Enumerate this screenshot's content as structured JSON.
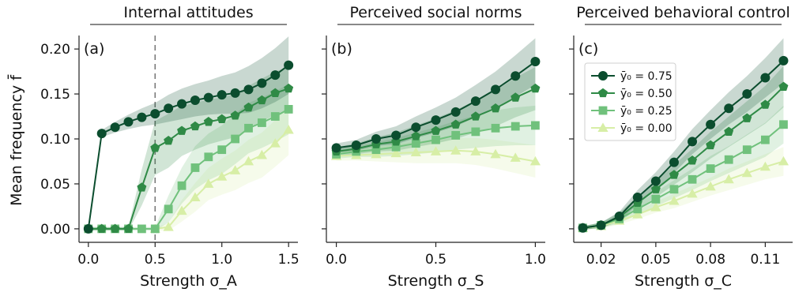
{
  "figure": {
    "ylabel": "Mean frequency f̄",
    "colors": {
      "0.75": "#0b4d2e",
      "0.50": "#2f8a46",
      "0.25": "#70c17c",
      "0.00": "#d7eea6"
    },
    "markers": {
      "0.75": "circle",
      "0.50": "pentagon",
      "0.25": "square",
      "0.00": "triangle"
    }
  },
  "legend": {
    "entries": [
      "ȳ₀ = 0.75",
      "ȳ₀ = 0.50",
      "ȳ₀ = 0.25",
      "ȳ₀ = 0.00"
    ]
  },
  "chart_data": [
    {
      "type": "line",
      "title": "Internal attitudes",
      "panel_label": "(a)",
      "xlabel": "Strength σ_A",
      "xlim": [
        -0.07,
        1.57
      ],
      "ylim": [
        -0.015,
        0.215
      ],
      "xticks": [
        0.0,
        0.5,
        1.0,
        1.5
      ],
      "xtick_labels": [
        "0.0",
        "0.5",
        "1.0",
        "1.5"
      ],
      "yticks": [
        0.0,
        0.05,
        0.1,
        0.15,
        0.2
      ],
      "ytick_labels": [
        "0.00",
        "0.05",
        "0.10",
        "0.15",
        "0.20"
      ],
      "vline": 0.5,
      "x": [
        0.0,
        0.1,
        0.2,
        0.3,
        0.4,
        0.5,
        0.6,
        0.7,
        0.8,
        0.9,
        1.0,
        1.1,
        1.2,
        1.3,
        1.4,
        1.5
      ],
      "series": [
        {
          "name": "ȳ₀ = 0.75",
          "key": "0.75",
          "values": [
            0.0,
            0.106,
            0.113,
            0.119,
            0.124,
            0.128,
            0.134,
            0.139,
            0.143,
            0.146,
            0.149,
            0.151,
            0.155,
            0.162,
            0.171,
            0.182
          ],
          "band": [
            0.002,
            0.004,
            0.006,
            0.008,
            0.01,
            0.012,
            0.015,
            0.017,
            0.018,
            0.019,
            0.021,
            0.023,
            0.026,
            0.028,
            0.03,
            0.032
          ]
        },
        {
          "name": "ȳ₀ = 0.50",
          "key": "0.50",
          "values": [
            0.0,
            0.0,
            0.0,
            0.0,
            0.046,
            0.09,
            0.098,
            0.109,
            0.114,
            0.119,
            0.122,
            0.126,
            0.135,
            0.143,
            0.151,
            0.156
          ],
          "band": [
            0.002,
            0.002,
            0.002,
            0.002,
            0.02,
            0.03,
            0.03,
            0.028,
            0.026,
            0.025,
            0.024,
            0.024,
            0.024,
            0.024,
            0.024,
            0.024
          ]
        },
        {
          "name": "ȳ₀ = 0.25",
          "key": "0.25",
          "values": [
            0.0,
            0.0,
            0.0,
            0.0,
            0.0,
            0.0,
            0.022,
            0.048,
            0.068,
            0.08,
            0.088,
            0.1,
            0.112,
            0.118,
            0.125,
            0.133
          ],
          "band": [
            0.002,
            0.002,
            0.002,
            0.002,
            0.002,
            0.002,
            0.015,
            0.02,
            0.024,
            0.026,
            0.027,
            0.028,
            0.028,
            0.028,
            0.028,
            0.028
          ]
        },
        {
          "name": "ȳ₀ = 0.00",
          "key": "0.00",
          "values": [
            null,
            null,
            null,
            null,
            null,
            0.0,
            0.002,
            0.02,
            0.035,
            0.05,
            0.058,
            0.065,
            0.075,
            0.082,
            0.095,
            0.11
          ],
          "band": [
            0,
            0,
            0,
            0,
            0,
            0.002,
            0.004,
            0.012,
            0.016,
            0.018,
            0.02,
            0.022,
            0.024,
            0.025,
            0.026,
            0.028
          ]
        }
      ]
    },
    {
      "type": "line",
      "title": "Perceived social norms",
      "panel_label": "(b)",
      "xlabel": "Strength σ_S",
      "xlim": [
        -0.05,
        1.05
      ],
      "ylim": [
        -0.015,
        0.215
      ],
      "xticks": [
        0.0,
        0.5,
        1.0
      ],
      "xtick_labels": [
        "0.0",
        "0.5",
        "1.0"
      ],
      "yticks": [
        0.0,
        0.05,
        0.1,
        0.15,
        0.2
      ],
      "ytick_labels": [],
      "x": [
        0.0,
        0.1,
        0.2,
        0.3,
        0.4,
        0.5,
        0.6,
        0.7,
        0.8,
        0.9,
        1.0
      ],
      "series": [
        {
          "name": "ȳ₀ = 0.75",
          "key": "0.75",
          "values": [
            0.09,
            0.093,
            0.1,
            0.104,
            0.113,
            0.121,
            0.13,
            0.142,
            0.155,
            0.17,
            0.186
          ],
          "band": [
            0.005,
            0.006,
            0.008,
            0.01,
            0.012,
            0.014,
            0.016,
            0.018,
            0.02,
            0.023,
            0.026
          ]
        },
        {
          "name": "ȳ₀ = 0.50",
          "key": "0.50",
          "values": [
            0.086,
            0.089,
            0.094,
            0.097,
            0.103,
            0.109,
            0.116,
            0.125,
            0.134,
            0.146,
            0.156
          ],
          "band": [
            0.005,
            0.006,
            0.008,
            0.01,
            0.012,
            0.014,
            0.016,
            0.018,
            0.02,
            0.022,
            0.024
          ]
        },
        {
          "name": "ȳ₀ = 0.25",
          "key": "0.25",
          "values": [
            0.083,
            0.086,
            0.088,
            0.091,
            0.095,
            0.099,
            0.104,
            0.108,
            0.112,
            0.114,
            0.115
          ],
          "band": [
            0.005,
            0.006,
            0.008,
            0.01,
            0.012,
            0.014,
            0.016,
            0.018,
            0.02,
            0.021,
            0.022
          ]
        },
        {
          "name": "ȳ₀ = 0.00",
          "key": "0.00",
          "values": [
            0.081,
            0.082,
            0.083,
            0.084,
            0.085,
            0.086,
            0.087,
            0.086,
            0.083,
            0.079,
            0.075
          ],
          "band": [
            0.005,
            0.006,
            0.008,
            0.01,
            0.012,
            0.013,
            0.014,
            0.015,
            0.016,
            0.017,
            0.018
          ]
        }
      ]
    },
    {
      "type": "line",
      "title": "Perceived behavioral control",
      "panel_label": "(c)",
      "xlabel": "Strength σ_C",
      "xlim": [
        0.005,
        0.125
      ],
      "ylim": [
        -0.015,
        0.215
      ],
      "xticks": [
        0.02,
        0.05,
        0.08,
        0.11
      ],
      "xtick_labels": [
        "0.02",
        "0.05",
        "0.08",
        "0.11"
      ],
      "yticks": [
        0.0,
        0.05,
        0.1,
        0.15,
        0.2
      ],
      "ytick_labels": [],
      "x": [
        0.01,
        0.02,
        0.03,
        0.04,
        0.05,
        0.06,
        0.07,
        0.08,
        0.09,
        0.1,
        0.11,
        0.12
      ],
      "series": [
        {
          "name": "ȳ₀ = 0.75",
          "key": "0.75",
          "values": [
            0.001,
            0.004,
            0.014,
            0.035,
            0.053,
            0.074,
            0.097,
            0.116,
            0.134,
            0.15,
            0.168,
            0.187
          ],
          "band": [
            0.002,
            0.003,
            0.005,
            0.008,
            0.01,
            0.012,
            0.014,
            0.016,
            0.018,
            0.02,
            0.022,
            0.025
          ]
        },
        {
          "name": "ȳ₀ = 0.50",
          "key": "0.50",
          "values": [
            0.001,
            0.004,
            0.013,
            0.029,
            0.044,
            0.06,
            0.076,
            0.093,
            0.108,
            0.123,
            0.138,
            0.158
          ],
          "band": [
            0.002,
            0.003,
            0.005,
            0.007,
            0.009,
            0.011,
            0.013,
            0.015,
            0.017,
            0.019,
            0.021,
            0.023
          ]
        },
        {
          "name": "ȳ₀ = 0.25",
          "key": "0.25",
          "values": [
            0.001,
            0.004,
            0.011,
            0.022,
            0.033,
            0.044,
            0.055,
            0.067,
            0.077,
            0.088,
            0.099,
            0.116
          ],
          "band": [
            0.002,
            0.003,
            0.005,
            0.006,
            0.008,
            0.01,
            0.012,
            0.014,
            0.015,
            0.017,
            0.019,
            0.021
          ]
        },
        {
          "name": "ȳ₀ = 0.00",
          "key": "0.00",
          "values": [
            0.001,
            0.003,
            0.009,
            0.016,
            0.024,
            0.031,
            0.039,
            0.047,
            0.055,
            0.062,
            0.069,
            0.075
          ],
          "band": [
            0.002,
            0.003,
            0.004,
            0.005,
            0.006,
            0.008,
            0.009,
            0.01,
            0.012,
            0.013,
            0.014,
            0.016
          ]
        }
      ]
    }
  ]
}
